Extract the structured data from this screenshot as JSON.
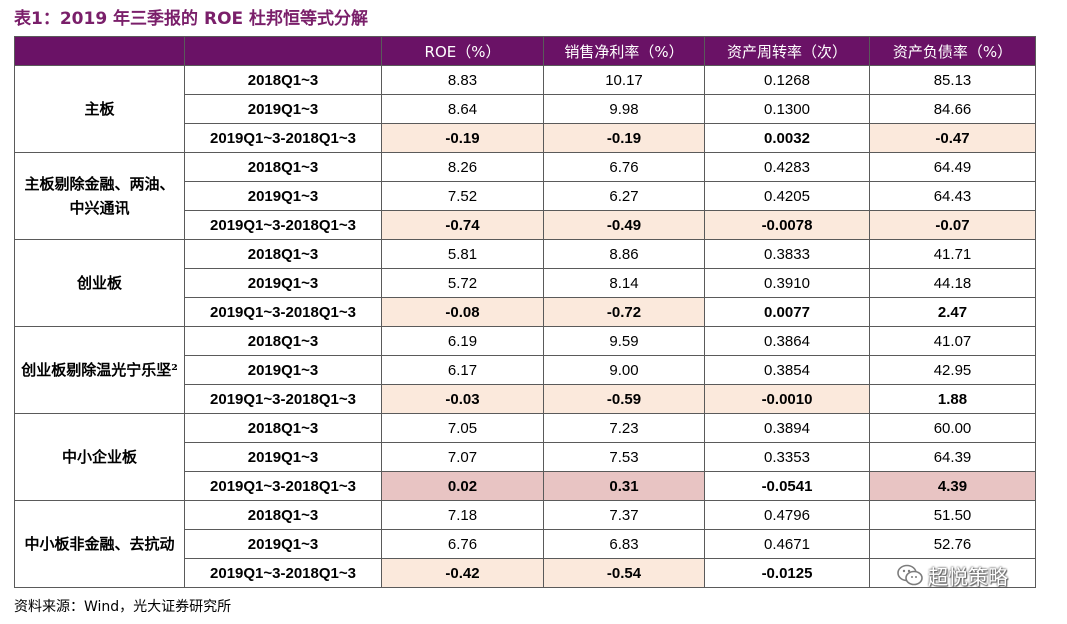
{
  "title": "表1：2019 年三季报的 ROE 杜邦恒等式分解",
  "header": [
    "",
    "",
    "ROE（%）",
    "销售净利率（%）",
    "资产周转率（次）",
    "资产负债率（%）"
  ],
  "groups": [
    {
      "label": "主板",
      "rows": [
        {
          "period": "2018Q1~3",
          "values": [
            "8.83",
            "10.17",
            "0.1268",
            "85.13"
          ]
        },
        {
          "period": "2019Q1~3",
          "values": [
            "8.64",
            "9.98",
            "0.1300",
            "84.66"
          ]
        },
        {
          "period": "2019Q1~3-2018Q1~3",
          "values": [
            "-0.19",
            "-0.19",
            "0.0032",
            "-0.47"
          ]
        }
      ]
    },
    {
      "label": "主板剔除金融、两油、中兴通讯",
      "rows": [
        {
          "period": "2018Q1~3",
          "values": [
            "8.26",
            "6.76",
            "0.4283",
            "64.49"
          ]
        },
        {
          "period": "2019Q1~3",
          "values": [
            "7.52",
            "6.27",
            "0.4205",
            "64.43"
          ]
        },
        {
          "period": "2019Q1~3-2018Q1~3",
          "values": [
            "-0.74",
            "-0.49",
            "-0.0078",
            "-0.07"
          ]
        }
      ]
    },
    {
      "label": "创业板",
      "rows": [
        {
          "period": "2018Q1~3",
          "values": [
            "5.81",
            "8.86",
            "0.3833",
            "41.71"
          ]
        },
        {
          "period": "2019Q1~3",
          "values": [
            "5.72",
            "8.14",
            "0.3910",
            "44.18"
          ]
        },
        {
          "period": "2019Q1~3-2018Q1~3",
          "values": [
            "-0.08",
            "-0.72",
            "0.0077",
            "2.47"
          ]
        }
      ]
    },
    {
      "label": "创业板剔除温光宁乐坚²",
      "rows": [
        {
          "period": "2018Q1~3",
          "values": [
            "6.19",
            "9.59",
            "0.3864",
            "41.07"
          ]
        },
        {
          "period": "2019Q1~3",
          "values": [
            "6.17",
            "9.00",
            "0.3854",
            "42.95"
          ]
        },
        {
          "period": "2019Q1~3-2018Q1~3",
          "values": [
            "-0.03",
            "-0.59",
            "-0.0010",
            "1.88"
          ]
        }
      ]
    },
    {
      "label": "中小企业板",
      "rows": [
        {
          "period": "2018Q1~3",
          "values": [
            "7.05",
            "7.23",
            "0.3894",
            "60.00"
          ]
        },
        {
          "period": "2019Q1~3",
          "values": [
            "7.07",
            "7.53",
            "0.3353",
            "64.39"
          ]
        },
        {
          "period": "2019Q1~3-2018Q1~3",
          "values": [
            "0.02",
            "0.31",
            "-0.0541",
            "4.39"
          ]
        }
      ]
    },
    {
      "label": "中小板非金融、去抗动",
      "rows": [
        {
          "period": "2018Q1~3",
          "values": [
            "7.18",
            "7.37",
            "0.4796",
            "51.50"
          ]
        },
        {
          "period": "2019Q1~3",
          "values": [
            "6.76",
            "6.83",
            "0.4671",
            "52.76"
          ]
        },
        {
          "period": "2019Q1~3-2018Q1~3",
          "values": [
            "-0.42",
            "-0.54",
            "-0.0125",
            ""
          ]
        }
      ]
    }
  ],
  "highlights": [
    [
      "light",
      "light",
      "none",
      "light"
    ],
    [
      "light",
      "light",
      "light",
      "light"
    ],
    [
      "light",
      "light",
      "none",
      "none"
    ],
    [
      "light",
      "light",
      "light",
      "none"
    ],
    [
      "strong",
      "strong",
      "none",
      "strong"
    ],
    [
      "light",
      "light",
      "none",
      "none"
    ]
  ],
  "colors": {
    "header_bg": "#6a1266",
    "title": "#7a1f6a",
    "highlight_light": "#fbe9dc",
    "highlight_strong": "#e8c4c3"
  },
  "source": "资料来源：Wind，光大证券研究所",
  "watermark": {
    "icon": "wechat-icon",
    "text": "超悦策略"
  }
}
